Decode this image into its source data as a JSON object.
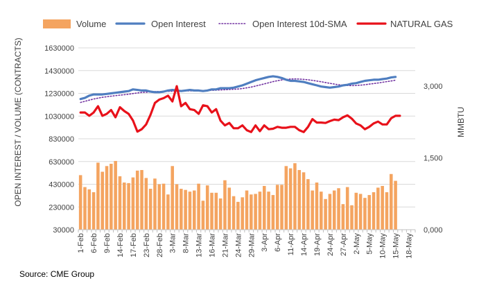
{
  "source": "Source: CME Group",
  "chart_data": {
    "type": "bar+line",
    "title": "",
    "legend": {
      "placement": "top",
      "entries": [
        {
          "name": "Volume",
          "kind": "bar",
          "color": "#F4A460"
        },
        {
          "name": "Open Interest",
          "kind": "line",
          "color": "#4F7EC0"
        },
        {
          "name": "Open Interest 10d-SMA",
          "kind": "dotted-line",
          "color": "#7030A0"
        },
        {
          "name": "NATURAL GAS",
          "kind": "line",
          "color": "#E8111A"
        }
      ]
    },
    "ylabel_left": "OPEN INTEREST / VOLUME (CONTRACTS)",
    "ylabel_right": "MMBTU",
    "ylim_left": [
      30000,
      1630000
    ],
    "ylim_right": [
      0,
      3800
    ],
    "yticks_left": [
      "1630000",
      "1430000",
      "1230000",
      "1030000",
      "830000",
      "630000",
      "430000",
      "230000",
      "30000"
    ],
    "yticks_right": [
      {
        "value": 3000,
        "label": "3,000"
      },
      {
        "value": 1500,
        "label": "1,500"
      },
      {
        "value": 0,
        "label": "0,000"
      }
    ],
    "x_tick_labels": [
      {
        "i": 0,
        "label": "1-Feb"
      },
      {
        "i": 3,
        "label": "6-Feb"
      },
      {
        "i": 6,
        "label": "9-Feb"
      },
      {
        "i": 9,
        "label": "14-Feb"
      },
      {
        "i": 12,
        "label": "17-Feb"
      },
      {
        "i": 15,
        "label": "23-Feb"
      },
      {
        "i": 18,
        "label": "28-Feb"
      },
      {
        "i": 21,
        "label": "3-Mar"
      },
      {
        "i": 24,
        "label": "8-Mar"
      },
      {
        "i": 27,
        "label": "13-Mar"
      },
      {
        "i": 30,
        "label": "16-Mar"
      },
      {
        "i": 33,
        "label": "21-Mar"
      },
      {
        "i": 36,
        "label": "24-Mar"
      },
      {
        "i": 39,
        "label": "29-Mar"
      },
      {
        "i": 42,
        "label": "3-Apr"
      },
      {
        "i": 45,
        "label": "6-Apr"
      },
      {
        "i": 48,
        "label": "11-Apr"
      },
      {
        "i": 51,
        "label": "14-Apr"
      },
      {
        "i": 54,
        "label": "19-Apr"
      },
      {
        "i": 57,
        "label": "24-Apr"
      },
      {
        "i": 60,
        "label": "27-Apr"
      },
      {
        "i": 63,
        "label": "2-May"
      },
      {
        "i": 66,
        "label": "5-May"
      },
      {
        "i": 69,
        "label": "10-May"
      },
      {
        "i": 72,
        "label": "15-May"
      },
      {
        "i": 75,
        "label": "18-May"
      }
    ],
    "n_slots": 77,
    "grid": "horizontal",
    "series": [
      {
        "name": "Volume",
        "axis": "left",
        "values": [
          510000,
          405000,
          385000,
          360000,
          620000,
          540000,
          590000,
          610000,
          635000,
          500000,
          445000,
          440000,
          490000,
          550000,
          555000,
          485000,
          390000,
          480000,
          430000,
          435000,
          340000,
          590000,
          430000,
          390000,
          380000,
          365000,
          375000,
          435000,
          285000,
          420000,
          355000,
          355000,
          305000,
          465000,
          400000,
          325000,
          275000,
          315000,
          375000,
          340000,
          345000,
          365000,
          415000,
          365000,
          335000,
          425000,
          425000,
          590000,
          570000,
          615000,
          555000,
          535000,
          475000,
          375000,
          445000,
          365000,
          300000,
          345000,
          375000,
          395000,
          255000,
          405000,
          245000,
          355000,
          345000,
          310000,
          335000,
          360000,
          400000,
          415000,
          360000,
          520000,
          460000
        ]
      },
      {
        "name": "Open Interest",
        "axis": "left",
        "values": [
          1180000,
          1190000,
          1210000,
          1220000,
          1220000,
          1220000,
          1225000,
          1230000,
          1235000,
          1240000,
          1245000,
          1250000,
          1265000,
          1260000,
          1255000,
          1255000,
          1245000,
          1240000,
          1240000,
          1245000,
          1255000,
          1260000,
          1255000,
          1250000,
          1255000,
          1260000,
          1255000,
          1255000,
          1250000,
          1255000,
          1265000,
          1265000,
          1275000,
          1275000,
          1275000,
          1280000,
          1290000,
          1300000,
          1315000,
          1330000,
          1345000,
          1355000,
          1365000,
          1375000,
          1380000,
          1375000,
          1365000,
          1350000,
          1340000,
          1340000,
          1335000,
          1330000,
          1320000,
          1310000,
          1300000,
          1290000,
          1285000,
          1280000,
          1285000,
          1290000,
          1300000,
          1305000,
          1315000,
          1320000,
          1330000,
          1340000,
          1345000,
          1350000,
          1350000,
          1355000,
          1360000,
          1370000,
          1375000
        ]
      },
      {
        "name": "Open Interest 10d-SMA",
        "axis": "left",
        "values": [
          1150000,
          1160000,
          1170000,
          1180000,
          1188000,
          1195000,
          1200000,
          1205000,
          1210000,
          1214000,
          1218000,
          1222000,
          1228000,
          1233000,
          1238000,
          1240000,
          1243000,
          1245000,
          1246000,
          1247000,
          1248000,
          1249000,
          1250000,
          1250000,
          1251000,
          1252000,
          1252000,
          1253000,
          1254000,
          1255000,
          1256000,
          1258000,
          1260000,
          1262000,
          1264000,
          1266000,
          1268000,
          1272000,
          1278000,
          1285000,
          1294000,
          1303000,
          1313000,
          1323000,
          1333000,
          1341000,
          1348000,
          1353000,
          1356000,
          1357000,
          1356000,
          1353000,
          1349000,
          1344000,
          1338000,
          1332000,
          1325000,
          1318000,
          1312000,
          1306000,
          1302000,
          1299000,
          1298000,
          1299000,
          1302000,
          1306000,
          1311000,
          1316000,
          1321000,
          1327000,
          1333000,
          1339000,
          1346000
        ]
      },
      {
        "name": "NATURAL GAS",
        "axis": "right",
        "values": [
          2450,
          2450,
          2380,
          2450,
          2580,
          2380,
          2420,
          2500,
          2350,
          2560,
          2480,
          2420,
          2280,
          2050,
          2100,
          2200,
          2400,
          2650,
          2720,
          2750,
          2800,
          2680,
          3000,
          2580,
          2650,
          2520,
          2500,
          2420,
          2600,
          2580,
          2450,
          2520,
          2280,
          2180,
          2230,
          2120,
          2120,
          2180,
          2080,
          2040,
          2180,
          2060,
          2180,
          2100,
          2110,
          2150,
          2130,
          2130,
          2150,
          2150,
          2080,
          2040,
          2150,
          2310,
          2240,
          2240,
          2230,
          2270,
          2300,
          2290,
          2350,
          2390,
          2320,
          2220,
          2180,
          2100,
          2150,
          2220,
          2260,
          2200,
          2200,
          2330,
          2380,
          2380
        ]
      }
    ]
  }
}
